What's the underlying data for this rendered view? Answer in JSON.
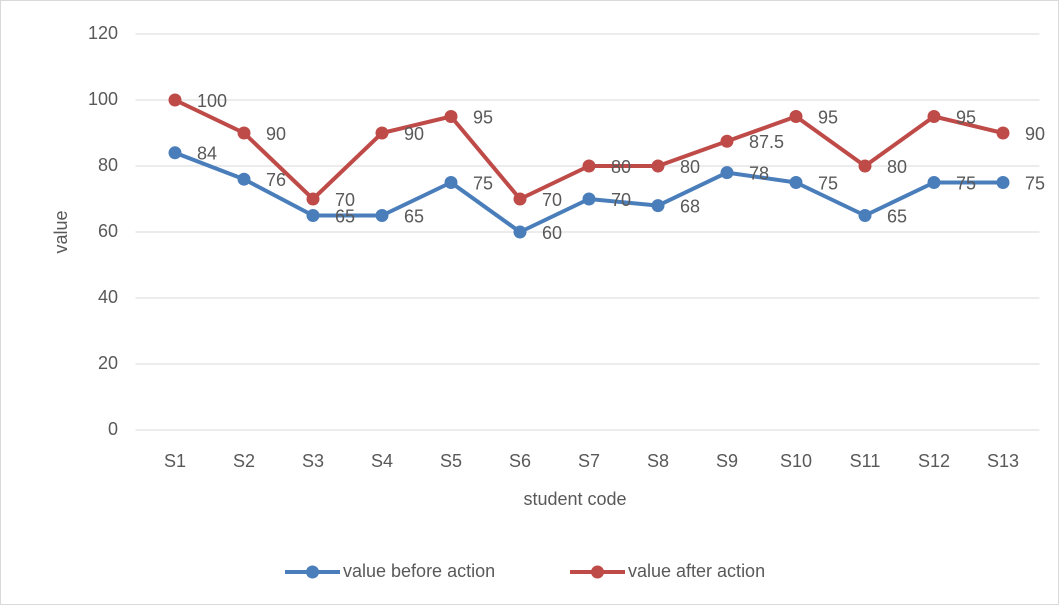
{
  "chart_data": {
    "type": "line",
    "x_label": "student code",
    "y_label": "value",
    "categories": [
      "S1",
      "S2",
      "S3",
      "S4",
      "S5",
      "S6",
      "S7",
      "S8",
      "S9",
      "S10",
      "S11",
      "S12",
      "S13"
    ],
    "series": [
      {
        "name": "value before action",
        "color": "#4a7ebb",
        "values": [
          84,
          76,
          65,
          65,
          75,
          60,
          70,
          68,
          78,
          75,
          65,
          75,
          75
        ]
      },
      {
        "name": "value after action",
        "color": "#be4b48",
        "values": [
          100,
          90,
          70,
          90,
          95,
          70,
          80,
          80,
          87.5,
          95,
          80,
          95,
          90
        ]
      }
    ],
    "ylim": [
      0,
      120
    ],
    "yticks": [
      0,
      20,
      40,
      60,
      80,
      100,
      120
    ],
    "grid": true,
    "legend": "bottom"
  }
}
